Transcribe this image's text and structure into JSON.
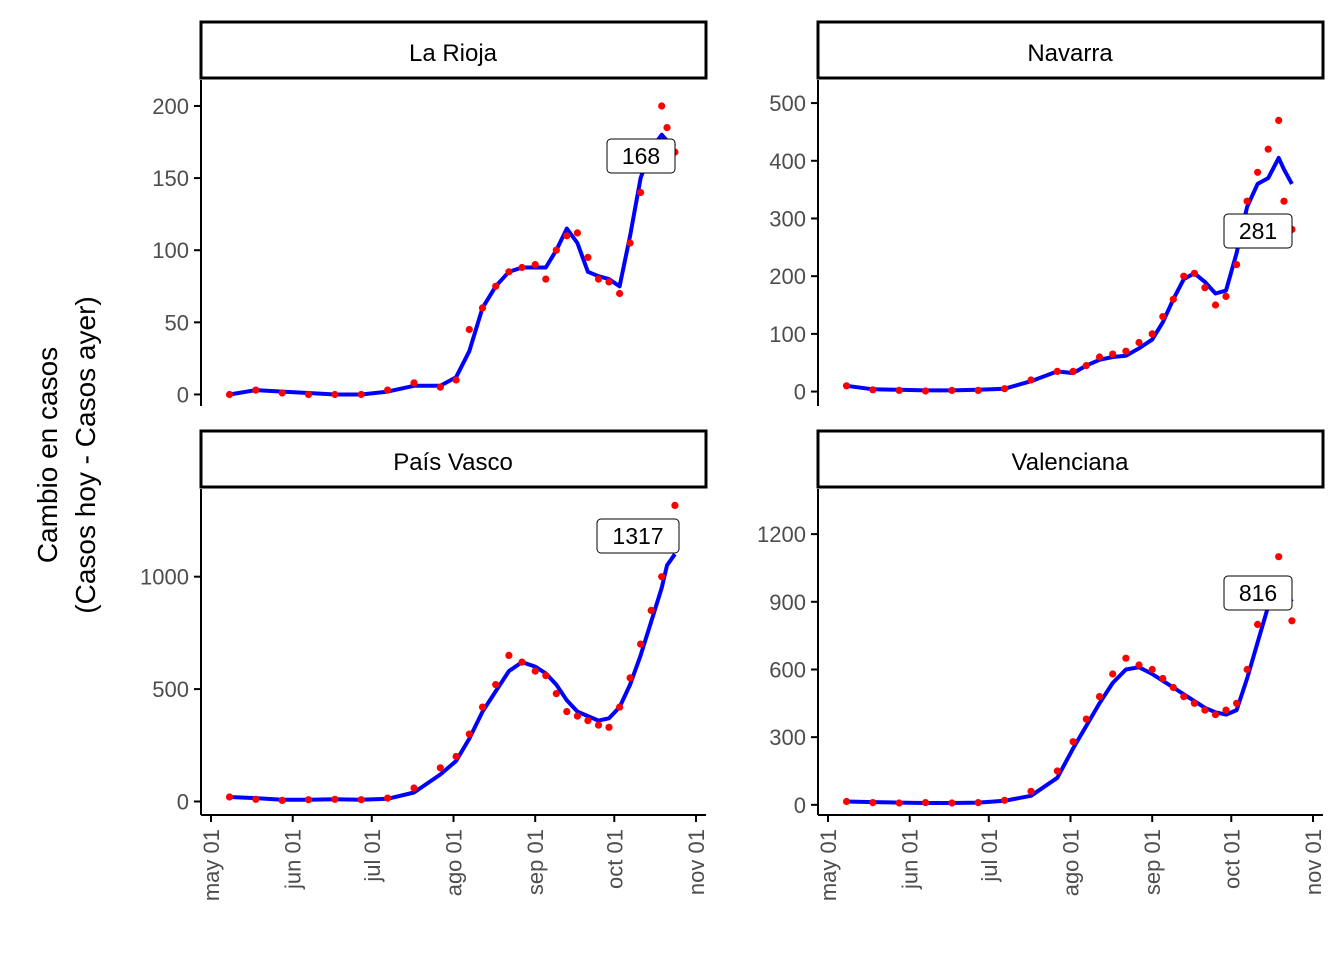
{
  "ylabel_line1": "Cambio en casos",
  "ylabel_line2": "(Casos hoy - Casos ayer)",
  "x_tick_labels": [
    "may 01",
    "jun 01",
    "jul 01",
    "ago 01",
    "sep 01",
    "oct 01",
    "nov 01"
  ],
  "colors": {
    "points": "#ff0000",
    "line": "#0000ff",
    "axis": "#000000",
    "tick_text": "#4d4d4d"
  },
  "chart_data": [
    {
      "type": "scatter",
      "title": "La Rioja",
      "label_value": "168",
      "x_range": [
        "2020-05-01",
        "2020-11-01"
      ],
      "y_range": [
        -8,
        218
      ],
      "y_ticks": [
        0,
        50,
        100,
        150,
        200
      ],
      "x": [
        "05-08",
        "05-18",
        "05-28",
        "06-07",
        "06-17",
        "06-27",
        "07-07",
        "07-17",
        "07-27",
        "08-02",
        "08-07",
        "08-12",
        "08-17",
        "08-22",
        "08-27",
        "09-01",
        "09-05",
        "09-09",
        "09-13",
        "09-17",
        "09-21",
        "09-25",
        "09-29",
        "10-03",
        "10-07",
        "10-11",
        "10-15",
        "10-19",
        "10-21",
        "10-24"
      ],
      "points": [
        0,
        3,
        1,
        0,
        0,
        0,
        3,
        8,
        5,
        10,
        45,
        60,
        75,
        85,
        88,
        90,
        80,
        100,
        110,
        112,
        95,
        80,
        78,
        70,
        105,
        140,
        165,
        200,
        185,
        168
      ],
      "trend": [
        0,
        3,
        2,
        1,
        0,
        0,
        2,
        6,
        6,
        12,
        30,
        60,
        75,
        85,
        88,
        88,
        88,
        100,
        115,
        105,
        85,
        82,
        80,
        75,
        110,
        150,
        170,
        180,
        176,
        172
      ]
    },
    {
      "type": "scatter",
      "title": "Navarra",
      "label_value": "281",
      "x_range": [
        "2020-05-01",
        "2020-11-01"
      ],
      "y_range": [
        -25,
        540
      ],
      "y_ticks": [
        0,
        100,
        200,
        300,
        400,
        500
      ],
      "x": [
        "05-08",
        "05-18",
        "05-28",
        "06-07",
        "06-17",
        "06-27",
        "07-07",
        "07-17",
        "07-27",
        "08-02",
        "08-07",
        "08-12",
        "08-17",
        "08-22",
        "08-27",
        "09-01",
        "09-05",
        "09-09",
        "09-13",
        "09-17",
        "09-21",
        "09-25",
        "09-29",
        "10-03",
        "10-07",
        "10-11",
        "10-15",
        "10-19",
        "10-21",
        "10-24"
      ],
      "points": [
        10,
        3,
        2,
        1,
        2,
        2,
        5,
        20,
        35,
        35,
        45,
        60,
        65,
        70,
        85,
        100,
        130,
        160,
        200,
        205,
        180,
        150,
        165,
        220,
        330,
        380,
        420,
        470,
        330,
        281
      ],
      "trend": [
        10,
        4,
        3,
        2,
        2,
        3,
        5,
        18,
        35,
        32,
        45,
        55,
        60,
        62,
        75,
        90,
        120,
        160,
        195,
        205,
        190,
        170,
        175,
        240,
        320,
        360,
        370,
        405,
        385,
        360
      ]
    },
    {
      "type": "scatter",
      "title": "País Vasco",
      "label_value": "1317",
      "x_range": [
        "2020-05-01",
        "2020-11-01"
      ],
      "y_range": [
        -60,
        1390
      ],
      "y_ticks": [
        0,
        500,
        1000
      ],
      "x": [
        "05-08",
        "05-18",
        "05-28",
        "06-07",
        "06-17",
        "06-27",
        "07-07",
        "07-17",
        "07-27",
        "08-02",
        "08-07",
        "08-12",
        "08-17",
        "08-22",
        "08-27",
        "09-01",
        "09-05",
        "09-09",
        "09-13",
        "09-17",
        "09-21",
        "09-25",
        "09-29",
        "10-03",
        "10-07",
        "10-11",
        "10-15",
        "10-19",
        "10-21",
        "10-24"
      ],
      "points": [
        20,
        10,
        5,
        8,
        10,
        8,
        15,
        60,
        150,
        200,
        300,
        420,
        520,
        650,
        620,
        580,
        560,
        480,
        400,
        380,
        360,
        340,
        330,
        420,
        550,
        700,
        850,
        1000,
        1200,
        1317
      ],
      "trend": [
        20,
        15,
        8,
        8,
        10,
        8,
        12,
        40,
        120,
        180,
        280,
        400,
        490,
        580,
        620,
        600,
        570,
        520,
        450,
        400,
        380,
        360,
        370,
        420,
        520,
        650,
        800,
        950,
        1050,
        1100
      ]
    },
    {
      "type": "scatter",
      "title": "Valenciana",
      "label_value": "816",
      "x_range": [
        "2020-05-01",
        "2020-11-01"
      ],
      "y_range": [
        -45,
        1400
      ],
      "y_ticks": [
        0,
        300,
        600,
        900,
        1200
      ],
      "x": [
        "05-08",
        "05-18",
        "05-28",
        "06-07",
        "06-17",
        "06-27",
        "07-07",
        "07-17",
        "07-27",
        "08-02",
        "08-07",
        "08-12",
        "08-17",
        "08-22",
        "08-27",
        "09-01",
        "09-05",
        "09-09",
        "09-13",
        "09-17",
        "09-21",
        "09-25",
        "09-29",
        "10-03",
        "10-07",
        "10-11",
        "10-15",
        "10-19",
        "10-21",
        "10-24"
      ],
      "points": [
        15,
        10,
        8,
        10,
        8,
        10,
        20,
        60,
        150,
        280,
        380,
        480,
        580,
        650,
        620,
        600,
        560,
        520,
        480,
        450,
        420,
        400,
        420,
        450,
        600,
        800,
        1000,
        1100,
        900,
        816
      ],
      "trend": [
        15,
        12,
        10,
        8,
        8,
        10,
        18,
        40,
        120,
        250,
        350,
        450,
        540,
        600,
        610,
        580,
        550,
        520,
        490,
        460,
        430,
        410,
        400,
        420,
        560,
        720,
        880,
        960,
        950,
        900
      ]
    }
  ]
}
